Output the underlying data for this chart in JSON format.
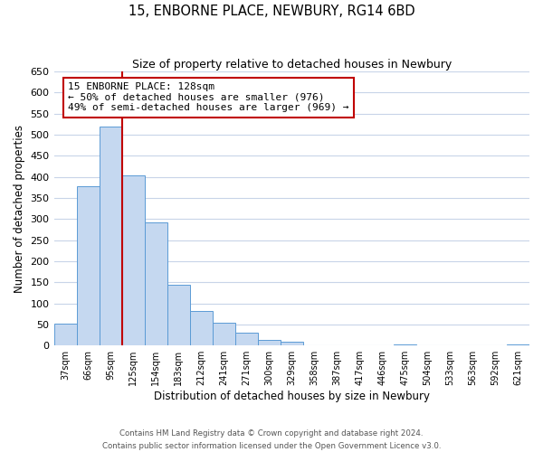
{
  "title": "15, ENBORNE PLACE, NEWBURY, RG14 6BD",
  "subtitle": "Size of property relative to detached houses in Newbury",
  "xlabel": "Distribution of detached houses by size in Newbury",
  "ylabel": "Number of detached properties",
  "categories": [
    "37sqm",
    "66sqm",
    "95sqm",
    "125sqm",
    "154sqm",
    "183sqm",
    "212sqm",
    "241sqm",
    "271sqm",
    "300sqm",
    "329sqm",
    "358sqm",
    "387sqm",
    "417sqm",
    "446sqm",
    "475sqm",
    "504sqm",
    "533sqm",
    "563sqm",
    "592sqm",
    "621sqm"
  ],
  "values": [
    52,
    378,
    520,
    404,
    293,
    144,
    82,
    55,
    30,
    13,
    10,
    0,
    0,
    0,
    0,
    3,
    0,
    0,
    0,
    0,
    2
  ],
  "bar_color": "#c5d8f0",
  "bar_edge_color": "#5b9bd5",
  "vline_color": "#c00000",
  "annotation_text": "15 ENBORNE PLACE: 128sqm\n← 50% of detached houses are smaller (976)\n49% of semi-detached houses are larger (969) →",
  "annotation_box_color": "#c00000",
  "ylim": [
    0,
    650
  ],
  "yticks": [
    0,
    50,
    100,
    150,
    200,
    250,
    300,
    350,
    400,
    450,
    500,
    550,
    600,
    650
  ],
  "footer_line1": "Contains HM Land Registry data © Crown copyright and database right 2024.",
  "footer_line2": "Contains public sector information licensed under the Open Government Licence v3.0.",
  "background_color": "#ffffff",
  "grid_color": "#c8d4e8"
}
